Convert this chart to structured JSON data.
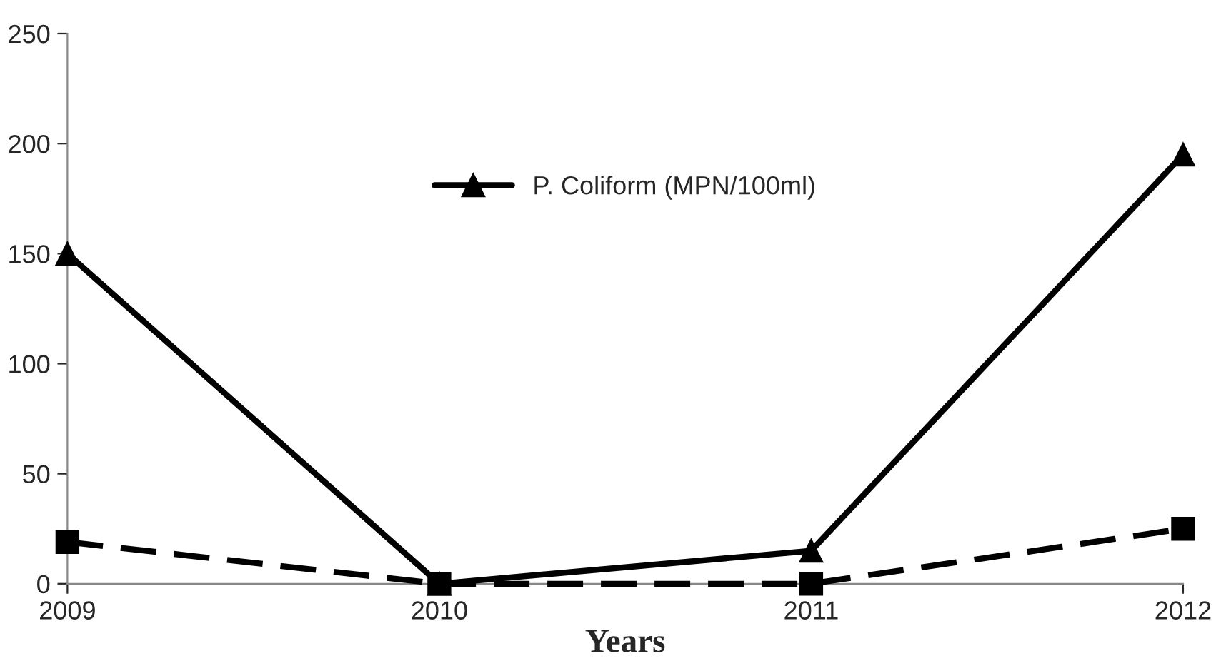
{
  "chart_data": {
    "type": "line",
    "xlabel": "Years",
    "categories": [
      "2009",
      "2010",
      "2011",
      "2012"
    ],
    "series": [
      {
        "name": "P. Coliform (MPN/100ml)",
        "color": "#000000",
        "marker": "triangle",
        "line_style": "solid",
        "values": [
          150,
          0,
          15,
          195
        ]
      },
      {
        "color": "#000000",
        "marker": "square",
        "line_style": "dashed",
        "values": [
          19,
          0,
          0,
          25
        ]
      }
    ],
    "ylim": [
      0,
      250
    ],
    "yticks": [
      0,
      50,
      100,
      150,
      200,
      250
    ],
    "grid": false,
    "legend": "top"
  }
}
